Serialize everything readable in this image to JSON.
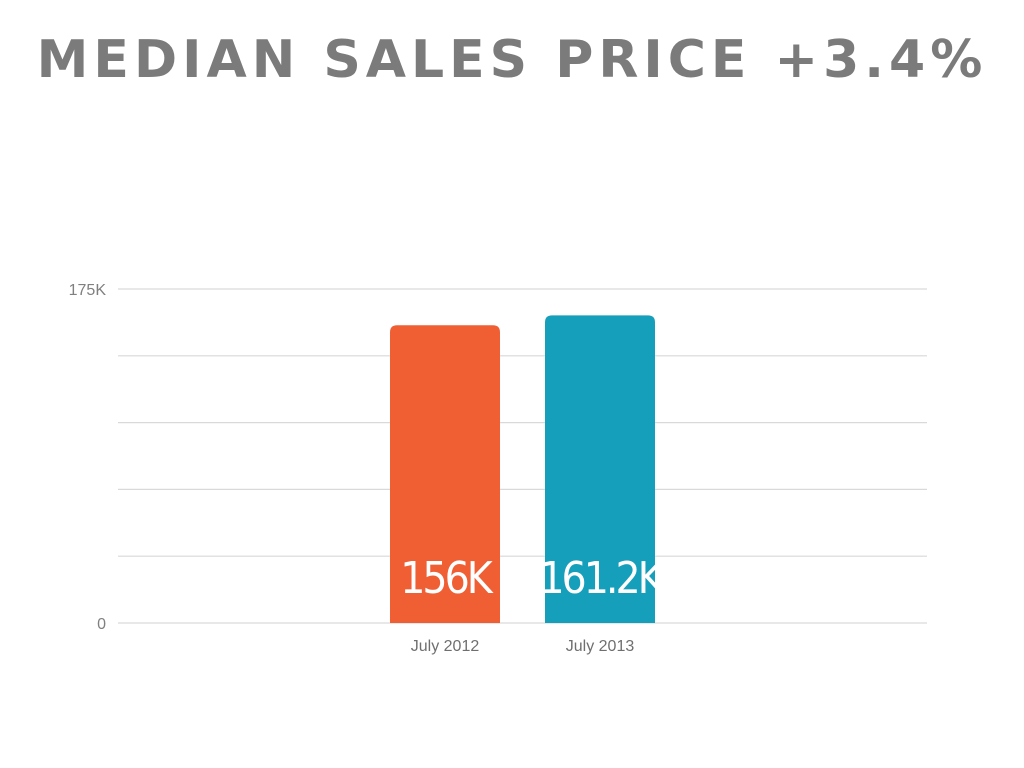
{
  "title": "MEDIAN SALES PRICE +3.4%",
  "chart_data": {
    "type": "bar",
    "categories": [
      "July 2012",
      "July 2013"
    ],
    "values": [
      156000,
      161200
    ],
    "data_labels": [
      "156K",
      "161.2K"
    ],
    "colors": [
      "#f05f34",
      "#159fbb"
    ],
    "ylim": [
      0,
      175000
    ],
    "y_ticks": [
      {
        "value": 0,
        "label": "0"
      },
      {
        "value": 35000,
        "label": ""
      },
      {
        "value": 70000,
        "label": ""
      },
      {
        "value": 105000,
        "label": ""
      },
      {
        "value": 140000,
        "label": ""
      },
      {
        "value": 175000,
        "label": "175K"
      }
    ],
    "grid": true,
    "grid_color": "#d9d9d9",
    "legend": "none"
  }
}
